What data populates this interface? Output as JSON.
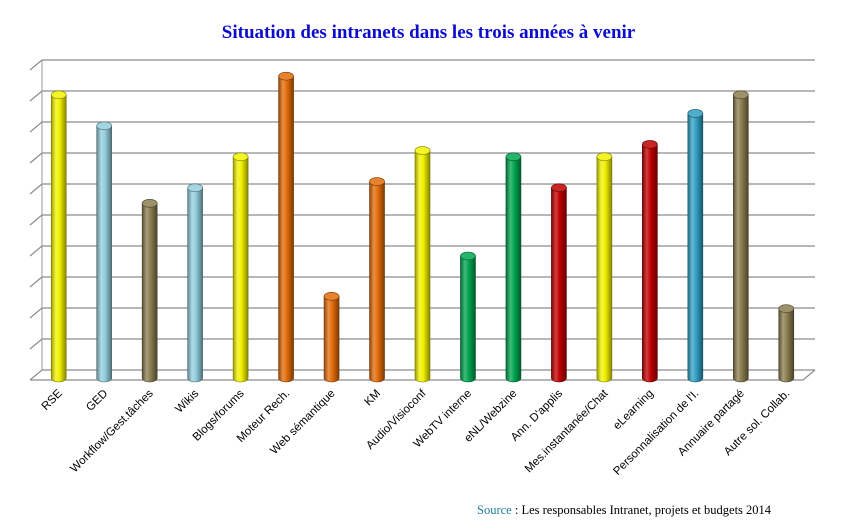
{
  "chart_data": {
    "type": "bar",
    "title": "Situation des intranets dans les trois années à venir",
    "categories": [
      "RSE",
      "GED",
      "Workflow/Gest.tâches",
      "Wikis",
      "Blogs/forums",
      "Moteur Rech.",
      "Web sémantique",
      "KM",
      "Audio/Visioconf",
      "WebTV interne",
      "eNL/Webzine",
      "Ann. D'applis",
      "Mes.instantanée/Chat",
      "eLearning",
      "Personnalisation de l'I.",
      "Annuaire partagé",
      "Autre sol. Collab."
    ],
    "values": [
      9.2,
      8.2,
      5.7,
      6.2,
      7.2,
      9.8,
      2.7,
      6.4,
      7.4,
      4.0,
      7.2,
      6.2,
      7.2,
      7.6,
      8.6,
      9.2,
      2.3
    ],
    "colors": [
      "#f2f200",
      "#93cddd",
      "#8b7d4f",
      "#93cddd",
      "#f2f200",
      "#e36c09",
      "#e36c09",
      "#e36c09",
      "#f2f200",
      "#00a550",
      "#00a550",
      "#c00000",
      "#f2f200",
      "#c00000",
      "#31a0c4",
      "#8b7d4f",
      "#8b7d4f"
    ],
    "ylim": [
      0,
      10
    ],
    "gridlines": 10,
    "grid": true,
    "legend": "none"
  },
  "source": {
    "label": "Source",
    "text": " : Les responsables Intranet, projets et budgets 2014"
  }
}
